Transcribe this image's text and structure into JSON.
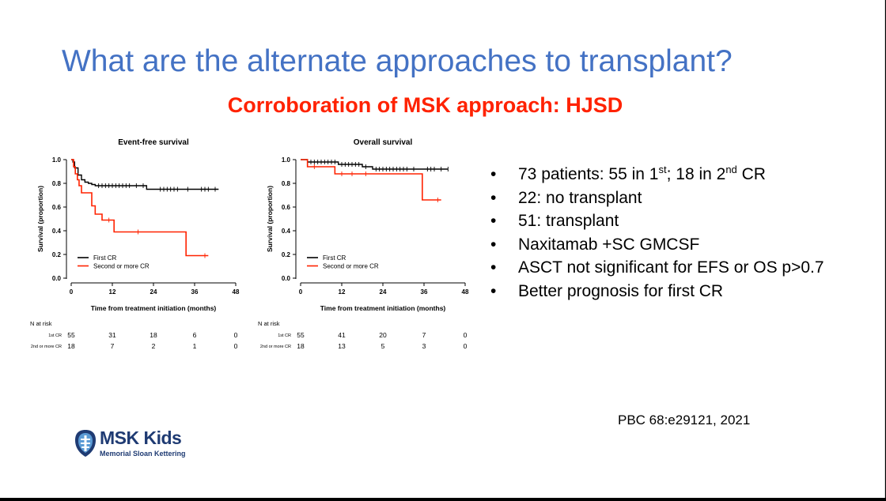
{
  "slide": {
    "title": "What are the alternate approaches to transplant?",
    "subtitle": "Corroboration of MSK approach: HJSD",
    "citation": "PBC 68:e29121, 2021",
    "bullets": [
      {
        "parts": [
          {
            "t": "73 patients: 55 in 1"
          },
          {
            "sup": "st"
          },
          {
            "t": "; 18 in 2"
          },
          {
            "sup": "nd"
          },
          {
            "t": " CR"
          }
        ]
      },
      {
        "parts": [
          {
            "t": "22: no transplant"
          }
        ]
      },
      {
        "parts": [
          {
            "t": "51: transplant"
          }
        ]
      },
      {
        "parts": [
          {
            "t": "Naxitamab +SC GMCSF"
          }
        ]
      },
      {
        "parts": [
          {
            "t": "ASCT not significant for EFS or OS p>0.7"
          }
        ]
      },
      {
        "parts": [
          {
            "t": "Better prognosis for first CR"
          }
        ]
      }
    ],
    "logo": {
      "name": "MSK Kids",
      "subtitle": "Memorial Sloan Kettering",
      "color": "#1f3b73"
    }
  },
  "chart_data": [
    {
      "type": "line",
      "title": "Event-free survival",
      "xlabel": "Time from treatment initiation (months)",
      "ylabel": "Survival (proportion)",
      "xlim": [
        0,
        48
      ],
      "ylim": [
        0,
        1
      ],
      "xticks": [
        0,
        12,
        24,
        36,
        48
      ],
      "yticks": [
        "0.0",
        "0.2",
        "0.4",
        "0.6",
        "0.8",
        "1.0"
      ],
      "legend_position": "bottom-left",
      "series": [
        {
          "name": "First CR",
          "color": "#000000",
          "steps": [
            [
              0,
              1.0
            ],
            [
              0.5,
              0.98
            ],
            [
              1,
              0.93
            ],
            [
              2,
              0.87
            ],
            [
              3,
              0.83
            ],
            [
              4,
              0.81
            ],
            [
              5,
              0.8
            ],
            [
              6,
              0.79
            ],
            [
              7,
              0.78
            ],
            [
              22,
              0.75
            ]
          ],
          "end": 43,
          "censor": [
            8,
            9,
            10,
            11,
            12,
            13,
            14,
            15,
            16,
            17,
            19,
            21,
            26,
            27,
            28,
            29,
            30,
            31,
            34,
            38,
            39,
            40,
            42
          ]
        },
        {
          "name": "Second or more CR",
          "color": "#ff2200",
          "steps": [
            [
              0,
              1.0
            ],
            [
              0.7,
              0.94
            ],
            [
              1.2,
              0.88
            ],
            [
              1.8,
              0.83
            ],
            [
              2.3,
              0.78
            ],
            [
              3,
              0.72
            ],
            [
              6,
              0.61
            ],
            [
              7,
              0.54
            ],
            [
              9,
              0.49
            ],
            [
              12.5,
              0.39
            ],
            [
              33.5,
              0.19
            ]
          ],
          "end": 40,
          "censor": [
            11,
            19.5,
            39
          ]
        }
      ],
      "risk_table": {
        "header": "N at risk",
        "times": [
          0,
          12,
          24,
          36,
          48
        ],
        "rows": [
          {
            "label": "1st CR",
            "values": [
              "55",
              "31",
              "18",
              "6",
              "0"
            ]
          },
          {
            "label": "2nd or more CR",
            "values": [
              "18",
              "7",
              "2",
              "1",
              "0"
            ]
          }
        ]
      }
    },
    {
      "type": "line",
      "title": "Overall survival",
      "xlabel": "Time from treatment initiation (months)",
      "ylabel": "Survival (proportion)",
      "xlim": [
        0,
        48
      ],
      "ylim": [
        0,
        1
      ],
      "xticks": [
        0,
        12,
        24,
        36,
        48
      ],
      "yticks": [
        "0.0",
        "0.2",
        "0.4",
        "0.6",
        "0.8",
        "1.0"
      ],
      "legend_position": "bottom-left",
      "series": [
        {
          "name": "First CR",
          "color": "#000000",
          "steps": [
            [
              0,
              1.0
            ],
            [
              2,
              0.98
            ],
            [
              11,
              0.96
            ],
            [
              18,
              0.94
            ],
            [
              21,
              0.92
            ]
          ],
          "end": 43,
          "censor": [
            3,
            4,
            5,
            6,
            7,
            8,
            9,
            10,
            12,
            13,
            14,
            15,
            16,
            17,
            19,
            22,
            23,
            24,
            25,
            26,
            27,
            28,
            29,
            30,
            31,
            33,
            37,
            38,
            39,
            41,
            43
          ]
        },
        {
          "name": "Second or more CR",
          "color": "#ff2200",
          "steps": [
            [
              0,
              1.0
            ],
            [
              2,
              0.94
            ],
            [
              10,
              0.88
            ],
            [
              35.5,
              0.66
            ]
          ],
          "end": 41,
          "censor": [
            4,
            12,
            15,
            19,
            40
          ]
        }
      ],
      "risk_table": {
        "header": "N at risk",
        "times": [
          0,
          12,
          24,
          36,
          48
        ],
        "rows": [
          {
            "label": "1st CR",
            "values": [
              "55",
              "41",
              "20",
              "7",
              "0"
            ]
          },
          {
            "label": "2nd or more CR",
            "values": [
              "18",
              "13",
              "5",
              "3",
              "0"
            ]
          }
        ]
      }
    }
  ]
}
